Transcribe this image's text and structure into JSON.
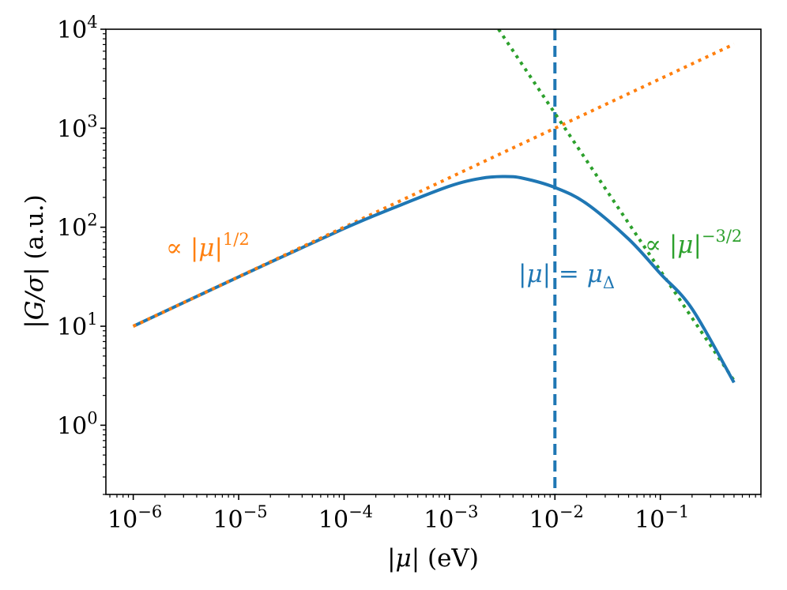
{
  "chart_data": {
    "type": "line",
    "xscale": "log",
    "yscale": "log",
    "xlim": [
      5.5e-07,
      0.9
    ],
    "ylim": [
      0.2,
      10000
    ],
    "xlabel": "|μ| (eV)",
    "ylabel": "|G/σ| (a.u.)",
    "x_ticks": [
      {
        "base": "10",
        "exp": "−6",
        "value": 1e-06
      },
      {
        "base": "10",
        "exp": "−5",
        "value": 1e-05
      },
      {
        "base": "10",
        "exp": "−4",
        "value": 0.0001
      },
      {
        "base": "10",
        "exp": "−3",
        "value": 0.001
      },
      {
        "base": "10",
        "exp": "−2",
        "value": 0.01
      },
      {
        "base": "10",
        "exp": "−1",
        "value": 0.1
      }
    ],
    "y_ticks": [
      {
        "base": "10",
        "exp": "0",
        "value": 1
      },
      {
        "base": "10",
        "exp": "1",
        "value": 10
      },
      {
        "base": "10",
        "exp": "2",
        "value": 100
      },
      {
        "base": "10",
        "exp": "3",
        "value": 1000
      },
      {
        "base": "10",
        "exp": "4",
        "value": 10000
      }
    ],
    "series": [
      {
        "name": "G/σ",
        "style": "solid",
        "color": "#1f77b4",
        "x": [
          1e-06,
          1e-05,
          0.0001,
          0.0003,
          0.001,
          0.002,
          0.0033,
          0.005,
          0.01,
          0.02,
          0.05,
          0.1,
          0.2,
          0.5
        ],
        "y": [
          10,
          31.5,
          97,
          158,
          260,
          312,
          325,
          312,
          252,
          173,
          76,
          34,
          15,
          2.7
        ]
      },
      {
        "name": "∝ |μ|^{1/2}",
        "style": "dotted",
        "color": "#ff7f0e",
        "x": [
          1e-06,
          0.5
        ],
        "y": [
          10,
          7071
        ]
      },
      {
        "name": "∝ |μ|^{-3/2}",
        "style": "dotted",
        "color": "#2ca02c",
        "x": [
          0.00292,
          0.5
        ],
        "y": [
          10000,
          2.83
        ]
      }
    ],
    "vline": {
      "x": 0.01,
      "style": "dashed",
      "color": "#1f77b4"
    },
    "annotations": [
      {
        "id": "half",
        "prefix": "∝ |",
        "var": "μ",
        "suffix": "|",
        "sup": "1/2",
        "color": "#ff7f0e"
      },
      {
        "id": "neg",
        "prefix": "∝ |",
        "var": "μ",
        "suffix": "|",
        "sup": "−3/2",
        "color": "#2ca02c"
      },
      {
        "id": "delta",
        "text_a": "|",
        "var": "μ",
        "text_b": "| = ",
        "var2": "μ",
        "sub": "Δ",
        "color": "#1f77b4"
      }
    ],
    "xlabel_parts": {
      "bar1": "|",
      "var": "μ",
      "bar2": "|",
      "unit": " (eV)"
    },
    "ylabel_parts": {
      "bar1": "|",
      "var": "G/σ",
      "bar2": "|",
      "unit": " (a.u.)"
    }
  }
}
